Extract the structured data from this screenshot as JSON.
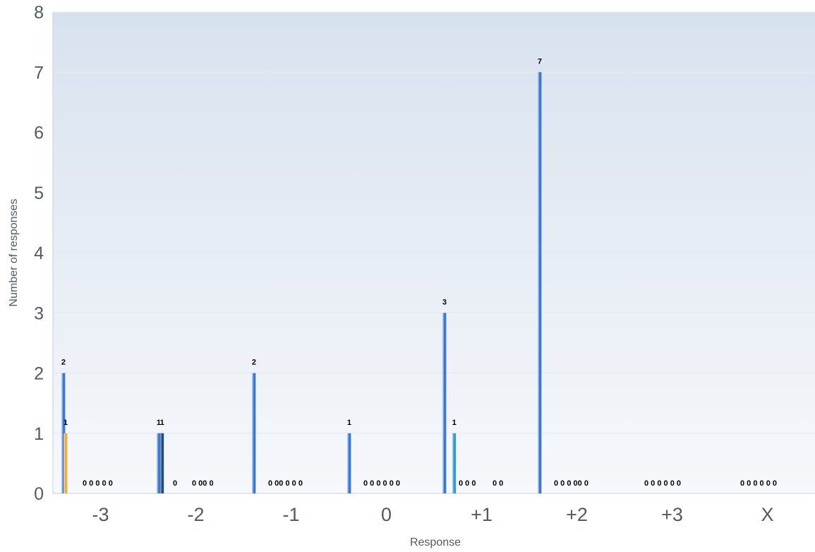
{
  "chart_data": {
    "type": "bar",
    "xlabel": "Response",
    "ylabel": "Number of responses",
    "ylim": [
      0,
      8
    ],
    "yticks": [
      "0",
      "1",
      "2",
      "3",
      "4",
      "5",
      "6",
      "7",
      "8"
    ],
    "grid": true,
    "legend": "none",
    "categories": [
      "-3",
      "-2",
      "-1",
      "0",
      "+1",
      "+2",
      "+3",
      "X"
    ],
    "series": [
      {
        "color": "#3a78d8",
        "values": [
          2,
          1,
          2,
          1,
          3,
          7,
          null,
          null
        ]
      },
      {
        "color": "#f0ad3c",
        "values": [
          1,
          null,
          null,
          null,
          null,
          null,
          null,
          null
        ]
      },
      {
        "color": "#1f4e79",
        "values": [
          null,
          1,
          null,
          null,
          null,
          null,
          null,
          null
        ]
      },
      {
        "color": "#a6a6a6",
        "values": [
          null,
          0,
          null,
          null,
          null,
          null,
          null,
          null
        ]
      },
      {
        "color": "#2e9bd8",
        "values": [
          null,
          null,
          null,
          null,
          1,
          null,
          null,
          null
        ]
      }
    ],
    "data_labels": [
      [
        "2",
        "1",
        "0 0 0 0 0"
      ],
      [
        "1",
        "0",
        "1",
        "0 00 0"
      ],
      [
        "2",
        "0 00 0 0 0"
      ],
      [
        "1",
        "0 0 0 0 0 0"
      ],
      [
        "3",
        "0 0 0",
        "1",
        "0 0"
      ],
      [
        "7",
        "0 0 0 00 0"
      ],
      [
        "0 0 0 0 0 0"
      ],
      [
        "0 0 0 0 0 0"
      ]
    ]
  }
}
